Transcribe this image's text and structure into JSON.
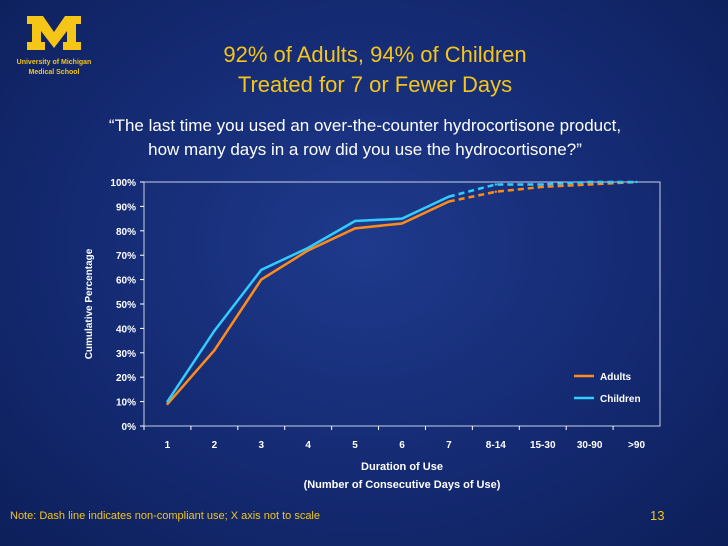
{
  "logo": {
    "letter": "M",
    "line1": "University of Michigan",
    "line2": "Medical School"
  },
  "title_line1": "92% of Adults, 94% of Children",
  "title_line2": "Treated for 7 or Fewer Days",
  "question_line1": "“The last time you used an over-the-counter hydrocortisone product,",
  "question_line2": "how many days in a row did you use the hydrocortisone?”",
  "note": "Note: Dash line indicates non-compliant use; X axis not to scale",
  "page_number": "13",
  "colors": {
    "adults": "#ff8c1a",
    "children": "#33ccff",
    "accent": "#f5c518"
  },
  "chart_data": {
    "type": "line",
    "categories": [
      "1",
      "2",
      "3",
      "4",
      "5",
      "6",
      "7",
      "8-14",
      "15-30",
      "30-90",
      ">90"
    ],
    "ylim": [
      0,
      100
    ],
    "yticks": [
      "0%",
      "10%",
      "20%",
      "30%",
      "40%",
      "50%",
      "60%",
      "70%",
      "80%",
      "90%",
      "100%"
    ],
    "ylabel": "Cumulative Percentage",
    "xlabel_line1": "Duration of Use",
    "xlabel_line2": "(Number of Consecutive Days of Use)",
    "solid_through_index": 6,
    "series": [
      {
        "name": "Adults",
        "values": [
          9,
          31,
          60,
          72,
          81,
          83,
          92,
          96,
          98,
          99,
          100
        ]
      },
      {
        "name": "Children",
        "values": [
          10,
          39,
          64,
          73,
          84,
          85,
          94,
          99,
          99,
          100,
          100
        ]
      }
    ],
    "legend_position": "bottom-right"
  }
}
